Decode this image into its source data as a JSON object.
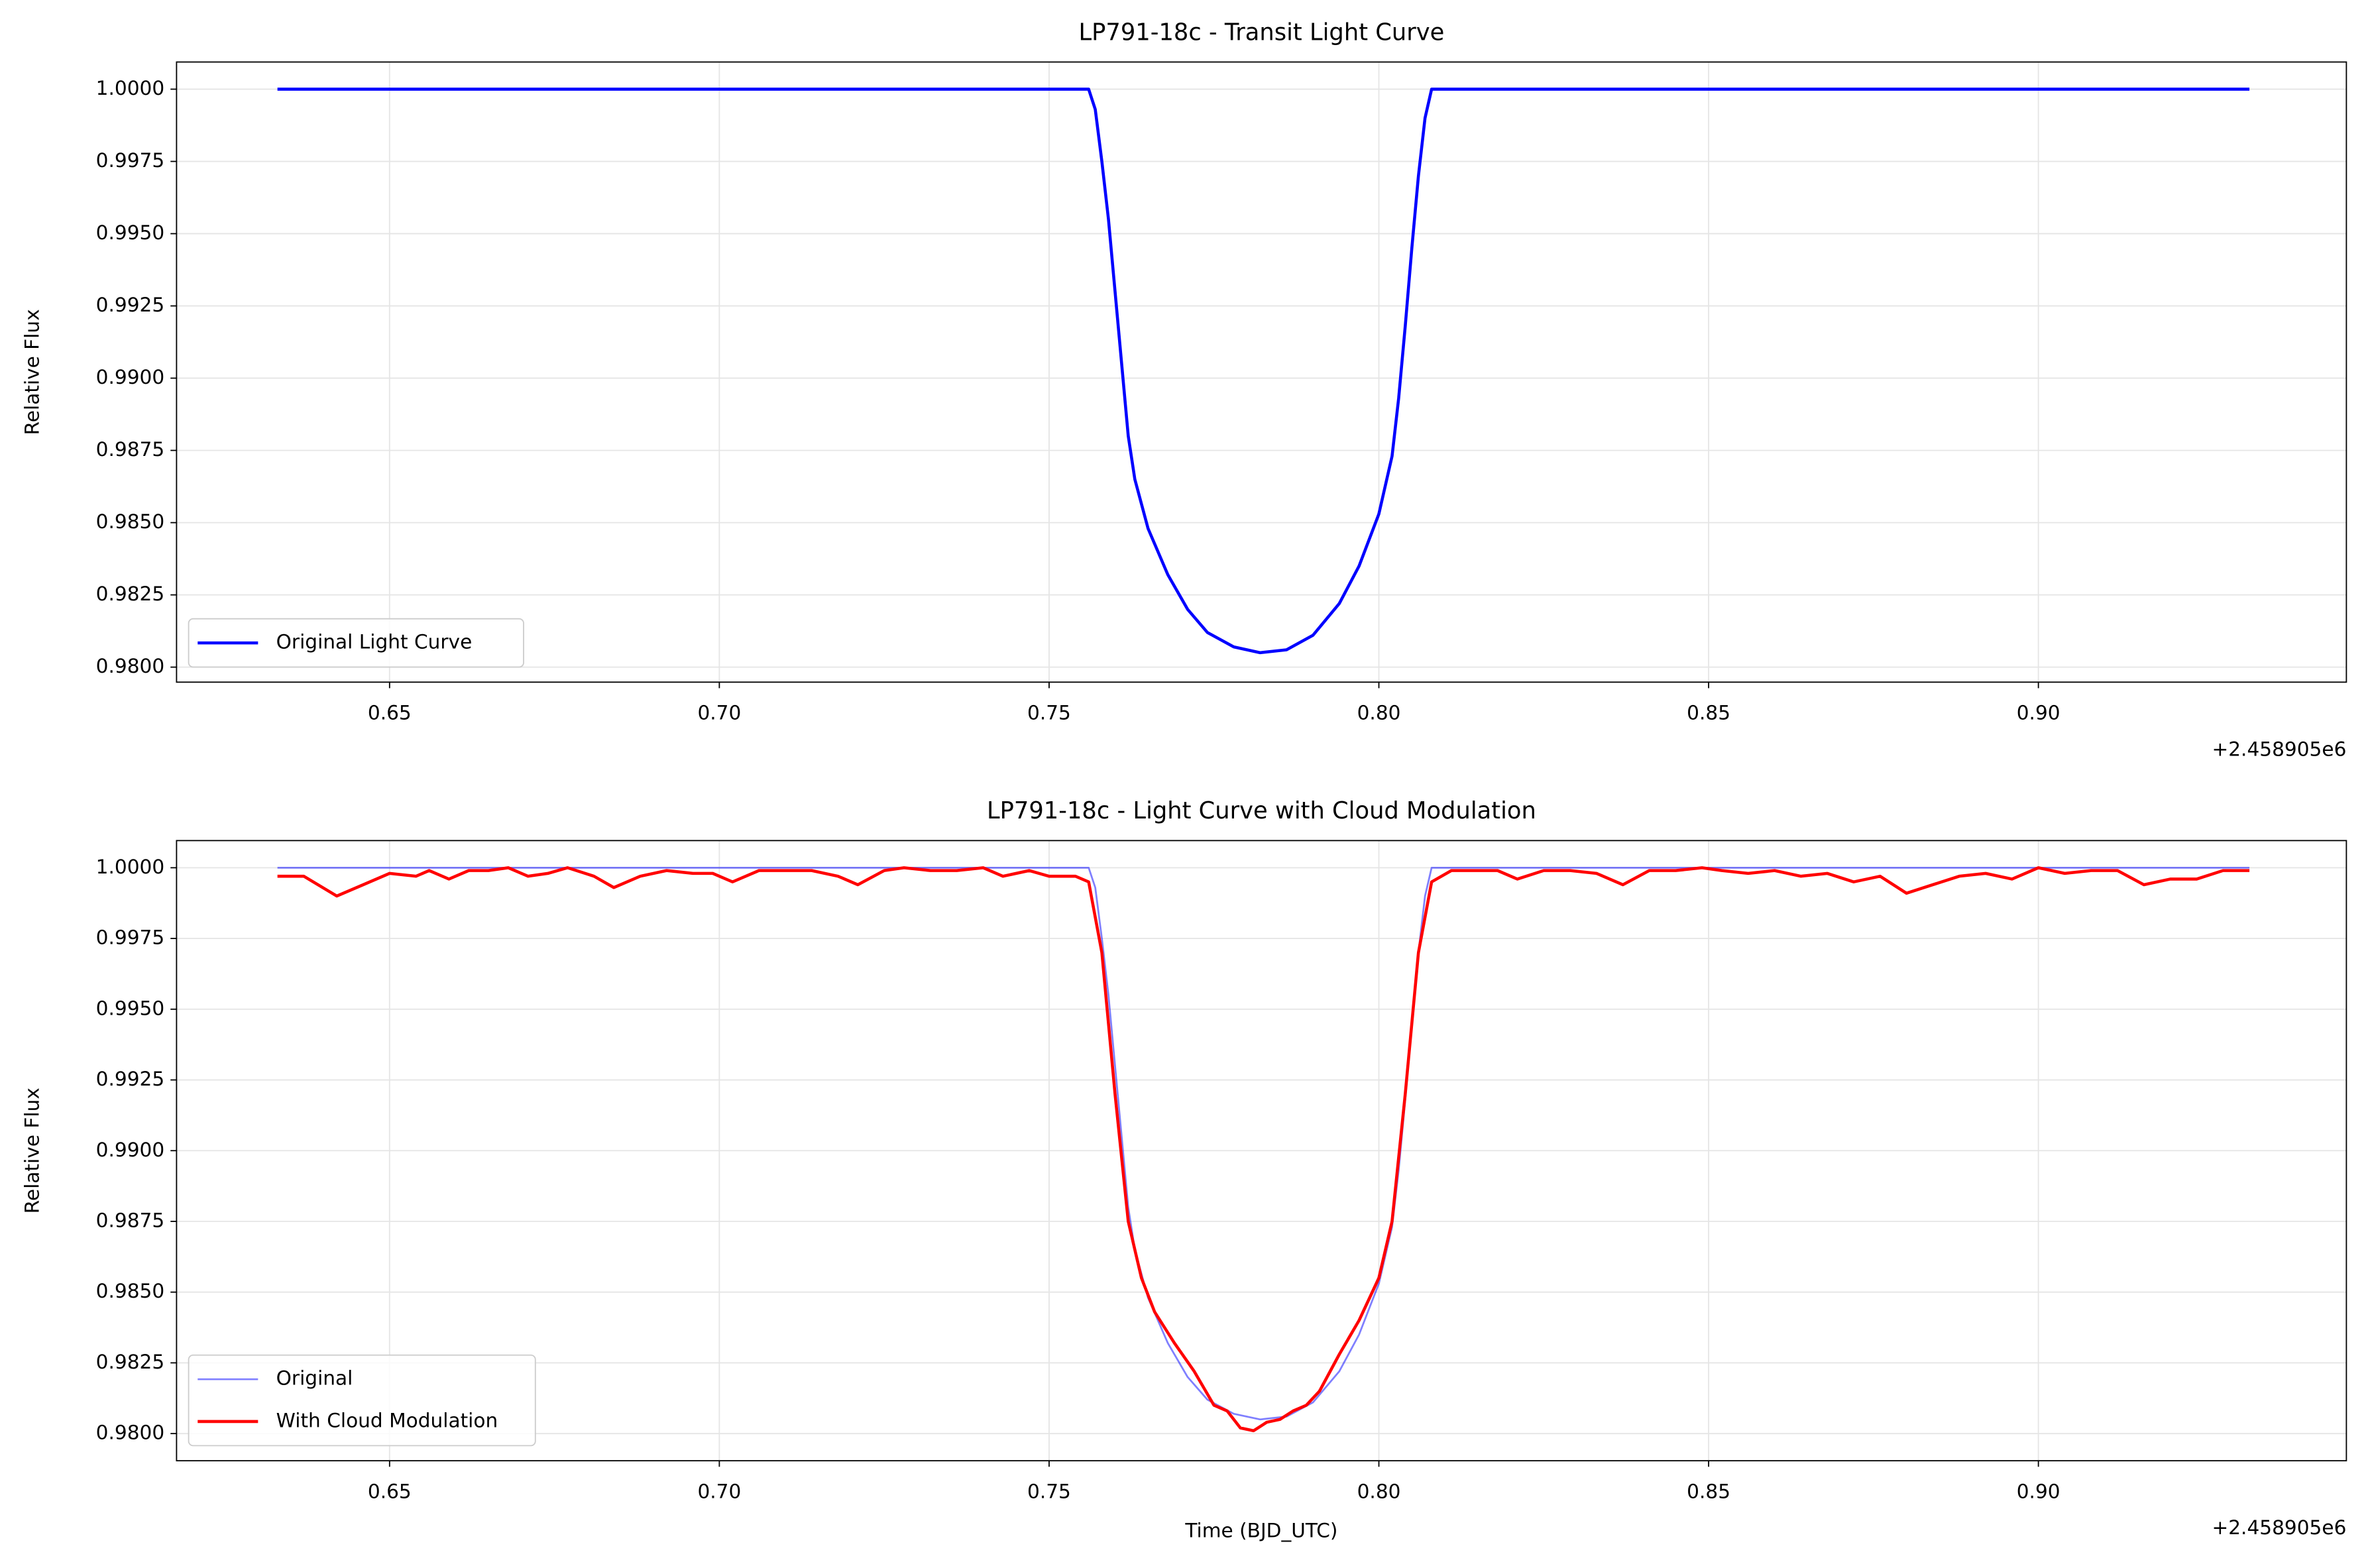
{
  "chart_data": [
    {
      "type": "line",
      "title": "LP791-18c - Transit Light Curve",
      "ylabel": "Relative Flux",
      "x_offset_label": "+2.458905e6",
      "xlim": [
        0.6177,
        0.9467
      ],
      "ylim": [
        0.97948,
        1.00094
      ],
      "xticks": [
        0.65,
        {
          "value": 0.7,
          "label": "0.70"
        },
        {
          "value": 0.75,
          "label": "0.75"
        },
        {
          "value": 0.8,
          "label": "0.80"
        },
        0.85,
        {
          "value": 0.9,
          "label": "0.90"
        }
      ],
      "yticks": [
        {
          "value": 0.98,
          "label": "0.9800"
        },
        {
          "value": 0.9825,
          "label": "0.9825"
        },
        {
          "value": 0.985,
          "label": "0.9850"
        },
        {
          "value": 0.9875,
          "label": "0.9875"
        },
        {
          "value": 0.99,
          "label": "0.9900"
        },
        {
          "value": 0.9925,
          "label": "0.9925"
        },
        {
          "value": 0.995,
          "label": "0.9950"
        },
        {
          "value": 0.9975,
          "label": "0.9975"
        },
        {
          "value": 1,
          "label": "1.0000"
        }
      ],
      "grid": true,
      "legend": "lower left",
      "series": [
        {
          "name": "Original Light Curve",
          "color": "#0000ff",
          "x": [
            0.633,
            0.7,
            0.756,
            0.757,
            0.758,
            0.759,
            0.76,
            0.761,
            0.762,
            0.763,
            0.765,
            0.768,
            0.771,
            0.774,
            0.778,
            0.782,
            0.786,
            0.79,
            0.794,
            0.797,
            0.8,
            0.802,
            0.803,
            0.804,
            0.805,
            0.806,
            0.807,
            0.808,
            0.85,
            0.932
          ],
          "values": [
            1.0,
            1.0,
            1.0,
            0.9993,
            0.9975,
            0.9955,
            0.993,
            0.9905,
            0.988,
            0.9865,
            0.9848,
            0.9832,
            0.982,
            0.9812,
            0.9807,
            0.9805,
            0.9806,
            0.9811,
            0.9822,
            0.9835,
            0.9853,
            0.9873,
            0.9893,
            0.9918,
            0.9945,
            0.997,
            0.999,
            1.0,
            1.0,
            1.0
          ]
        }
      ]
    },
    {
      "type": "line",
      "title": "LP791-18c - Light Curve with Cloud Modulation",
      "xlabel": "Time (BJD_UTC)",
      "ylabel": "Relative Flux",
      "x_offset_label": "+2.458905e6",
      "xlim": [
        0.6177,
        0.9467
      ],
      "ylim": [
        0.97904,
        1.00096
      ],
      "xticks": [
        0.65,
        {
          "value": 0.7,
          "label": "0.70"
        },
        {
          "value": 0.75,
          "label": "0.75"
        },
        {
          "value": 0.8,
          "label": "0.80"
        },
        0.85,
        {
          "value": 0.9,
          "label": "0.90"
        }
      ],
      "yticks": [
        {
          "value": 0.98,
          "label": "0.9800"
        },
        {
          "value": 0.9825,
          "label": "0.9825"
        },
        {
          "value": 0.985,
          "label": "0.9850"
        },
        {
          "value": 0.9875,
          "label": "0.9875"
        },
        {
          "value": 0.99,
          "label": "0.9900"
        },
        {
          "value": 0.9925,
          "label": "0.9925"
        },
        {
          "value": 0.995,
          "label": "0.9950"
        },
        {
          "value": 0.9975,
          "label": "0.9975"
        },
        {
          "value": 1,
          "label": "1.0000"
        }
      ],
      "grid": true,
      "legend": "lower left",
      "series": [
        {
          "name": "Original",
          "color": "#0000ff",
          "alpha": 0.5,
          "x": [
            0.633,
            0.7,
            0.756,
            0.757,
            0.758,
            0.759,
            0.76,
            0.761,
            0.762,
            0.763,
            0.765,
            0.768,
            0.771,
            0.774,
            0.778,
            0.782,
            0.786,
            0.79,
            0.794,
            0.797,
            0.8,
            0.802,
            0.803,
            0.804,
            0.805,
            0.806,
            0.807,
            0.808,
            0.85,
            0.932
          ],
          "values": [
            1.0,
            1.0,
            1.0,
            0.9993,
            0.9975,
            0.9955,
            0.993,
            0.9905,
            0.988,
            0.9865,
            0.9848,
            0.9832,
            0.982,
            0.9812,
            0.9807,
            0.9805,
            0.9806,
            0.9811,
            0.9822,
            0.9835,
            0.9853,
            0.9873,
            0.9893,
            0.9918,
            0.9945,
            0.997,
            0.999,
            1.0,
            1.0,
            1.0
          ]
        },
        {
          "name": "With Cloud Modulation",
          "color": "#ff0000",
          "x": [
            0.633,
            0.637,
            0.642,
            0.646,
            0.65,
            0.654,
            0.656,
            0.659,
            0.662,
            0.665,
            0.668,
            0.671,
            0.674,
            0.677,
            0.681,
            0.684,
            0.688,
            0.692,
            0.696,
            0.699,
            0.702,
            0.706,
            0.71,
            0.714,
            0.718,
            0.721,
            0.725,
            0.728,
            0.732,
            0.736,
            0.74,
            0.743,
            0.747,
            0.75,
            0.754,
            0.756,
            0.758,
            0.76,
            0.762,
            0.764,
            0.766,
            0.769,
            0.772,
            0.775,
            0.777,
            0.779,
            0.781,
            0.783,
            0.785,
            0.787,
            0.789,
            0.791,
            0.794,
            0.797,
            0.8,
            0.802,
            0.804,
            0.806,
            0.808,
            0.811,
            0.814,
            0.818,
            0.821,
            0.825,
            0.829,
            0.833,
            0.837,
            0.841,
            0.845,
            0.849,
            0.852,
            0.856,
            0.86,
            0.864,
            0.868,
            0.872,
            0.876,
            0.88,
            0.884,
            0.888,
            0.892,
            0.896,
            0.9,
            0.904,
            0.908,
            0.912,
            0.916,
            0.92,
            0.924,
            0.928,
            0.932
          ],
          "values": [
            0.9997,
            0.9997,
            0.999,
            0.9994,
            0.9998,
            0.9997,
            0.9999,
            0.9996,
            0.9999,
            0.9999,
            1.0,
            0.9997,
            0.9998,
            1.0,
            0.9997,
            0.9993,
            0.9997,
            0.9999,
            0.9998,
            0.9998,
            0.9995,
            0.9999,
            0.9999,
            0.9999,
            0.9997,
            0.9994,
            0.9999,
            1.0,
            0.9999,
            0.9999,
            1.0,
            0.9997,
            0.9999,
            0.9997,
            0.9997,
            0.9995,
            0.997,
            0.992,
            0.9875,
            0.9855,
            0.9843,
            0.9832,
            0.9822,
            0.981,
            0.9808,
            0.9802,
            0.9801,
            0.9804,
            0.9805,
            0.9808,
            0.981,
            0.9815,
            0.9828,
            0.984,
            0.9855,
            0.9875,
            0.992,
            0.997,
            0.9995,
            0.9999,
            0.9999,
            0.9999,
            0.9996,
            0.9999,
            0.9999,
            0.9998,
            0.9994,
            0.9999,
            0.9999,
            1.0,
            0.9999,
            0.9998,
            0.9999,
            0.9997,
            0.9998,
            0.9995,
            0.9997,
            0.9991,
            0.9994,
            0.9997,
            0.9998,
            0.9996,
            1.0,
            0.9998,
            0.9999,
            0.9999,
            0.9994,
            0.9996,
            0.9996,
            0.9999,
            0.9999
          ]
        }
      ]
    }
  ]
}
